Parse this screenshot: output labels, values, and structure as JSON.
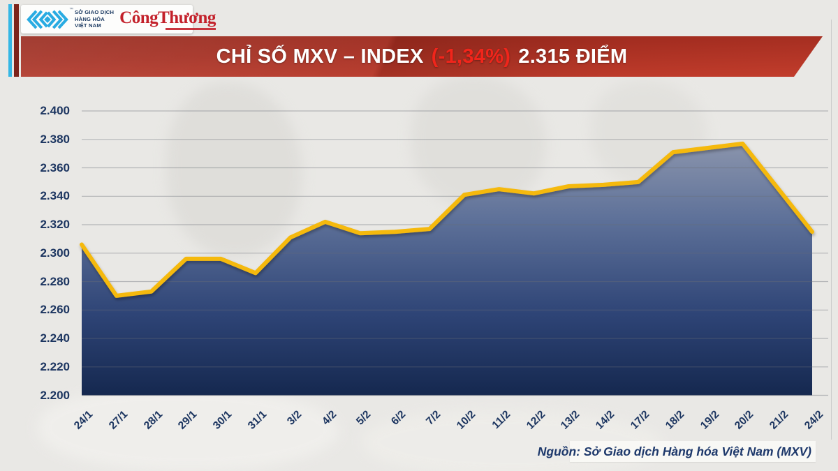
{
  "header": {
    "mxv_logo": {
      "trademark": "™",
      "lines": [
        "SỞ GIAO DỊCH",
        "HÀNG HÓA",
        "VIỆT NAM"
      ],
      "accent_color": "#29abe2"
    },
    "congthuong_logo": {
      "text": "CôngThương",
      "color": "#c3202a"
    }
  },
  "banner": {
    "title_prefix": "CHỈ SỐ MXV – INDEX",
    "change": "(-1,34%)",
    "title_suffix": "2.315 ĐIỂM",
    "bg_color_top": "#97281c",
    "bg_color_bottom": "#c23d2c",
    "change_color": "#f1251b",
    "text_color": "#ffffff"
  },
  "chart_data": {
    "type": "area",
    "title": "CHỈ SỐ MXV – INDEX (-1,34%) 2.315 ĐIỂM",
    "categories": [
      "24/1",
      "27/1",
      "28/1",
      "29/1",
      "30/1",
      "31/1",
      "3/2",
      "4/2",
      "5/2",
      "6/2",
      "7/2",
      "10/2",
      "11/2",
      "12/2",
      "13/2",
      "14/2",
      "17/2",
      "18/2",
      "19/2",
      "20/2",
      "21/2",
      "24/2"
    ],
    "values": [
      2306,
      2270,
      2273,
      2296,
      2296,
      2286,
      2311,
      2322,
      2314,
      2315,
      2317,
      2341,
      2345,
      2342,
      2347,
      2348,
      2350,
      2371,
      2374,
      2377,
      2346,
      2315
    ],
    "last_value_label": "2.315",
    "xlabel": "",
    "ylabel": "",
    "ylim": [
      2200,
      2400
    ],
    "ytick_values": [
      2400,
      2380,
      2360,
      2340,
      2320,
      2300,
      2280,
      2260,
      2240,
      2220,
      2200
    ],
    "ytick_labels": [
      "2.400",
      "2.380",
      "2.360",
      "2.340",
      "2.320",
      "2.300",
      "2.280",
      "2.260",
      "2.240",
      "2.220",
      "2.200"
    ],
    "grid": true,
    "legend_position": "none",
    "line_color": "#f5b90a",
    "fill_gradient": [
      "#8a94ac",
      "#5e7199",
      "#2e4476",
      "#15284f"
    ],
    "grid_color": "rgba(104,110,120,0.42)",
    "axis_label_color": "#1c3560"
  },
  "footer": {
    "source": "Nguồn: Sở Giao dịch Hàng hóa Việt Nam (MXV)"
  }
}
